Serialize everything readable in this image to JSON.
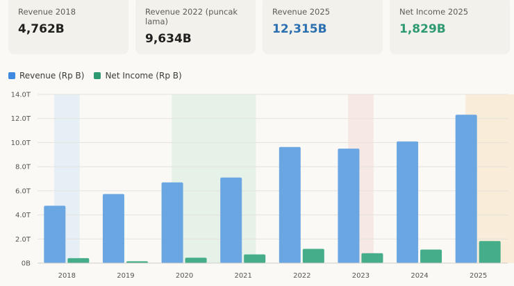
{
  "cards": [
    {
      "label": "Revenue 2018",
      "value": "4,762B",
      "color": "default"
    },
    {
      "label": "Revenue 2022 (puncak lama)",
      "value": "9,634B",
      "color": "default"
    },
    {
      "label": "Revenue 2025",
      "value": "12,315B",
      "color": "blue"
    },
    {
      "label": "Net Income 2025",
      "value": "1,829B",
      "color": "green"
    }
  ],
  "colors": {
    "revenue": "#6aa6e2",
    "net_income": "#45ad8a",
    "band_blue": "#e6eff5",
    "band_green": "#e6f1e8",
    "band_red": "#f6e8e4",
    "band_orange": "#f9ecd8"
  },
  "chart_data": {
    "type": "bar",
    "categories": [
      "2018",
      "2019",
      "2020",
      "2021",
      "2022",
      "2023",
      "2024",
      "2025"
    ],
    "series": [
      {
        "name": "Revenue (Rp B)",
        "values": [
          4762,
          5730,
          6700,
          7100,
          9634,
          9500,
          10100,
          12315
        ]
      },
      {
        "name": "Net Income (Rp B)",
        "values": [
          410,
          150,
          450,
          720,
          1180,
          820,
          1120,
          1829
        ]
      }
    ],
    "ylim": [
      0,
      14000
    ],
    "yticks": [
      0,
      2000,
      4000,
      6000,
      8000,
      10000,
      12000,
      14000
    ],
    "ytick_labels": [
      "0B",
      "2.0T",
      "4.0T",
      "6.0T",
      "8.0T",
      "10.0T",
      "12.0T",
      "14.0T"
    ],
    "grid": true,
    "legend": "top-left",
    "bands": [
      {
        "from": "2018",
        "to": "2018",
        "color": "band_blue"
      },
      {
        "from": "2020",
        "to": "2021",
        "color": "band_green"
      },
      {
        "from": "2023",
        "to": "2023",
        "color": "band_red"
      },
      {
        "from": "2025",
        "to": "2025",
        "color": "band_orange"
      }
    ]
  }
}
